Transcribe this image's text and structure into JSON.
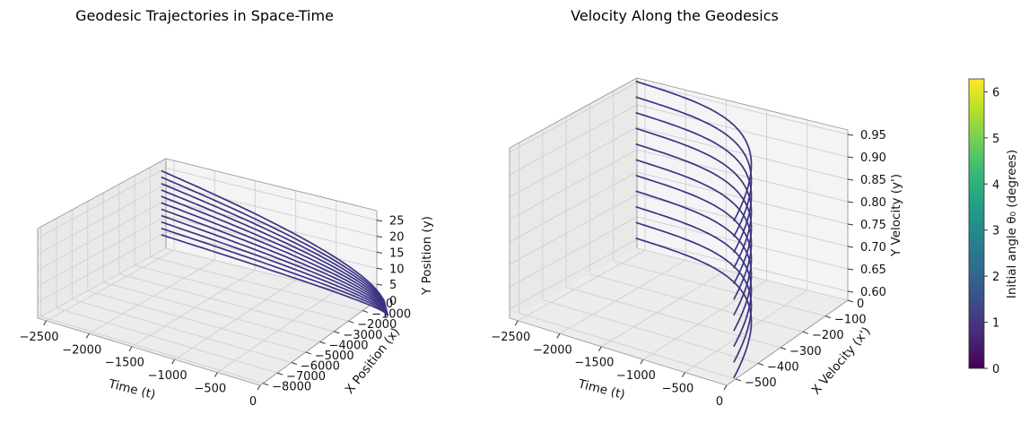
{
  "chart_data": [
    {
      "type": "line3d",
      "title": "Geodesic Trajectories in Space-Time",
      "xlabel": "Time (t)",
      "ylabel": "X Position (x)",
      "zlabel": "Y Position (y)",
      "x_ticks": [
        "−2500",
        "−2000",
        "−1500",
        "−1000",
        "−500",
        "0"
      ],
      "y_ticks": [
        "0",
        "−1000",
        "−2000",
        "−3000",
        "−4000",
        "−5000",
        "−6000",
        "−7000",
        "−8000"
      ],
      "z_ticks": [
        "0",
        "5",
        "10",
        "15",
        "20",
        "25"
      ],
      "xlim": [
        -2600,
        0
      ],
      "ylim": [
        -8200,
        0
      ],
      "zlim": [
        0,
        28
      ],
      "series_count": 11,
      "series_note": "curves start at t=0, x=0, y=0 and end at t about -2600 with y from 5 to 25 and x near 0",
      "end_y": [
        5,
        7,
        9,
        11,
        13,
        15,
        17,
        19,
        21,
        23,
        25
      ],
      "line_color": "#3b3383"
    },
    {
      "type": "line3d",
      "title": "Velocity Along the Geodesics",
      "xlabel": "Time (t)",
      "ylabel": "X Velocity (x')",
      "zlabel": "Y Velocity (y')",
      "x_ticks": [
        "−2500",
        "−2000",
        "−1500",
        "−1000",
        "−500",
        "0"
      ],
      "y_ticks": [
        "0",
        "−100",
        "−200",
        "−300",
        "−400",
        "−500"
      ],
      "z_ticks": [
        "0.60",
        "0.65",
        "0.70",
        "0.75",
        "0.80",
        "0.85",
        "0.90",
        "0.95"
      ],
      "xlim": [
        -2600,
        0
      ],
      "ylim": [
        -540,
        0
      ],
      "zlim": [
        0.58,
        0.96
      ],
      "series_count": 11,
      "series_note": "y' stays nearly constant per curve (0.60 to 0.95 in steps of 0.035); x' goes from about -500 at t=0 to near 0 at t=-2600",
      "levels": [
        0.6,
        0.635,
        0.67,
        0.705,
        0.74,
        0.775,
        0.81,
        0.845,
        0.88,
        0.915,
        0.95
      ],
      "line_color": "#3b3383"
    }
  ],
  "colorbar": {
    "label": "Initial angle θ₀ (degrees)",
    "ticks": [
      "0",
      "1",
      "2",
      "3",
      "4",
      "5",
      "6"
    ],
    "range": [
      0,
      6.28
    ],
    "colormap": "viridis",
    "stops": [
      "#440154",
      "#482878",
      "#3e4989",
      "#31688e",
      "#26828e",
      "#1f9e89",
      "#35b779",
      "#6ece58",
      "#b5de2b",
      "#fde725"
    ]
  }
}
